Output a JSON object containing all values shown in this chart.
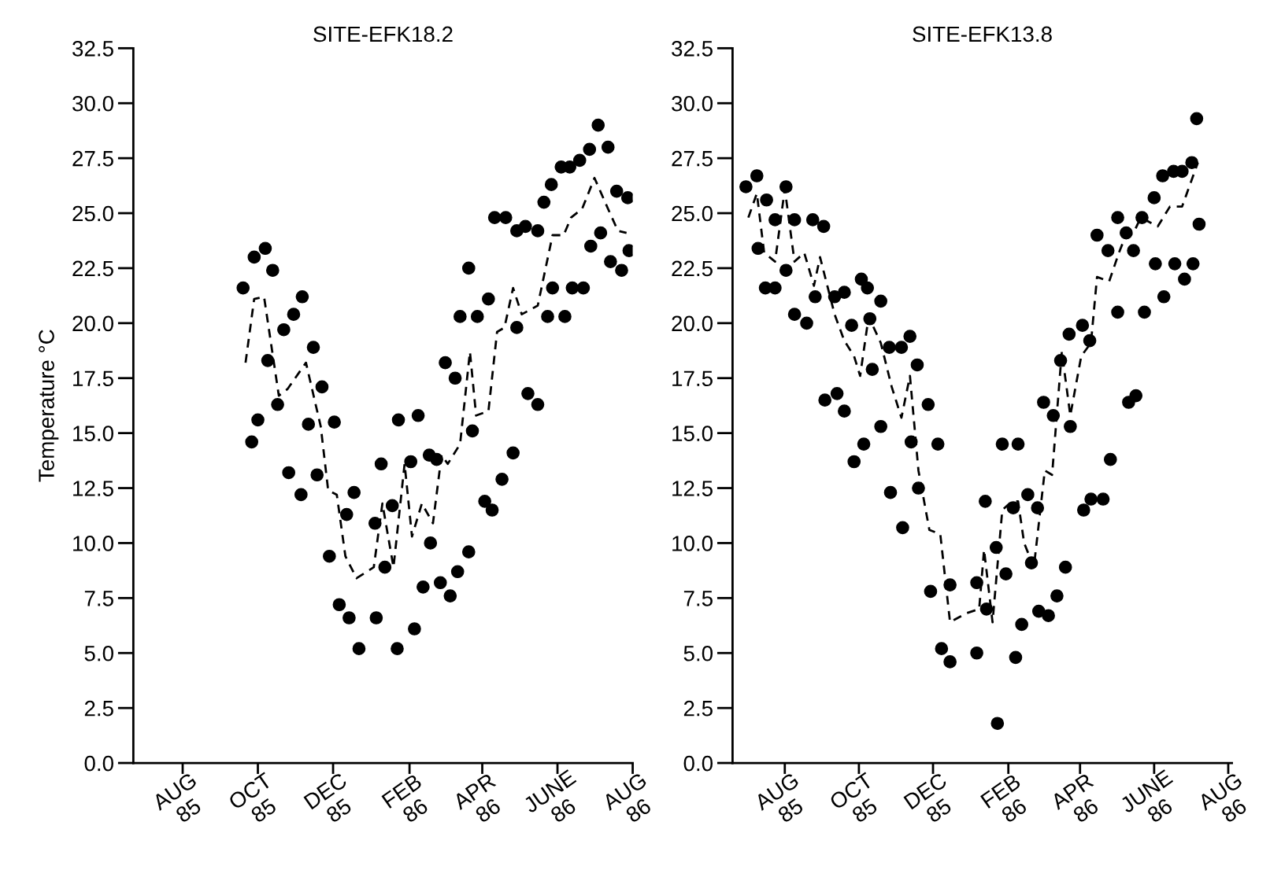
{
  "chart_data": [
    {
      "type": "scatter",
      "title": "SITE-EFK18.2",
      "ylabel": "Temperature °C",
      "xlim": [
        "1985-06-22",
        "1986-08-01"
      ],
      "ylim": [
        0,
        32.5
      ],
      "xticks": [
        {
          "value": "1985-08",
          "label": "AUG\n85"
        },
        {
          "value": "1985-10",
          "label": "OCT\n85"
        },
        {
          "value": "1985-12",
          "label": "DEC\n85"
        },
        {
          "value": "1986-02",
          "label": "FEB\n86"
        },
        {
          "value": "1986-04",
          "label": "APR\n86"
        },
        {
          "value": "1986-06",
          "label": "JUNE\n86"
        },
        {
          "value": "1986-08",
          "label": "AUG\n86"
        }
      ],
      "yticks": [
        {
          "value": 0,
          "label": "0.0"
        },
        {
          "value": 2.5,
          "label": "2.5"
        },
        {
          "value": 5,
          "label": "5.0"
        },
        {
          "value": 7.5,
          "label": "7.5"
        },
        {
          "value": 10,
          "label": "10.0"
        },
        {
          "value": 12.5,
          "label": "12.5"
        },
        {
          "value": 15,
          "label": "15.0"
        },
        {
          "value": 17.5,
          "label": "17.5"
        },
        {
          "value": 20,
          "label": "20.0"
        },
        {
          "value": 22.5,
          "label": "22.5"
        },
        {
          "value": 25,
          "label": "25.0"
        },
        {
          "value": 27.5,
          "label": "27.5"
        },
        {
          "value": 30,
          "label": "30.0"
        },
        {
          "value": 32.5,
          "label": "32.5"
        }
      ],
      "series": [
        {
          "color": "#000000",
          "marker": "circle",
          "x": [
            "1985-09-19",
            "1985-09-26",
            "1985-09-28",
            "1985-10-01",
            "1985-10-07",
            "1985-10-09",
            "1985-10-13",
            "1985-10-17",
            "1985-10-22",
            "1985-10-26",
            "1985-10-30",
            "1985-11-05",
            "1985-11-06",
            "1985-11-11",
            "1985-11-15",
            "1985-11-18",
            "1985-11-22",
            "1985-11-28",
            "1985-12-02",
            "1985-12-06",
            "1985-12-12",
            "1985-12-14",
            "1985-12-18",
            "1985-12-22",
            "1986-01-04",
            "1986-01-05",
            "1986-01-09",
            "1986-01-12",
            "1986-01-18",
            "1986-01-22",
            "1986-01-23",
            "1986-02-02",
            "1986-02-05",
            "1986-02-08",
            "1986-02-12",
            "1986-02-17",
            "1986-02-18",
            "1986-02-23",
            "1986-02-26",
            "1986-03-02",
            "1986-03-06",
            "1986-03-10",
            "1986-03-12",
            "1986-03-14",
            "1986-03-21",
            "1986-03-21",
            "1986-03-24",
            "1986-03-28",
            "1986-04-03",
            "1986-04-06",
            "1986-04-09",
            "1986-04-11",
            "1986-04-17",
            "1986-04-20",
            "1986-04-26",
            "1986-04-29",
            "1986-04-29",
            "1986-05-06",
            "1986-05-08",
            "1986-05-16",
            "1986-05-16",
            "1986-05-21",
            "1986-05-24",
            "1986-05-27",
            "1986-05-28",
            "1986-06-04",
            "1986-06-07",
            "1986-06-11",
            "1986-06-13",
            "1986-06-19",
            "1986-06-22",
            "1986-06-27",
            "1986-06-28",
            "1986-07-04",
            "1986-07-06",
            "1986-07-12",
            "1986-07-14",
            "1986-07-19",
            "1986-07-23",
            "1986-07-28",
            "1986-07-29"
          ],
          "values": [
            21.6,
            14.6,
            23.0,
            15.6,
            23.4,
            18.3,
            22.4,
            16.3,
            19.7,
            13.2,
            20.4,
            12.2,
            21.2,
            15.4,
            18.9,
            13.1,
            17.1,
            9.4,
            15.5,
            7.2,
            11.3,
            6.6,
            12.3,
            5.2,
            10.9,
            6.6,
            13.6,
            8.9,
            11.7,
            5.2,
            15.6,
            13.7,
            6.1,
            15.8,
            8.0,
            14.0,
            10.0,
            13.8,
            8.2,
            18.2,
            7.6,
            17.5,
            8.7,
            20.3,
            9.6,
            22.5,
            15.1,
            20.3,
            11.9,
            21.1,
            11.5,
            24.8,
            12.9,
            24.8,
            14.1,
            24.2,
            19.8,
            24.4,
            16.8,
            24.2,
            16.3,
            25.5,
            20.3,
            26.3,
            21.6,
            27.1,
            20.3,
            27.1,
            21.6,
            27.4,
            21.6,
            27.9,
            23.5,
            29.0,
            24.1,
            28.0,
            22.8,
            26.0,
            22.4,
            25.7,
            23.3
          ]
        },
        {
          "type": "line",
          "color": "#000000",
          "line_style": "dashed",
          "x": [
            "1985-09-21",
            "1985-09-28",
            "1985-10-06",
            "1985-10-18",
            "1985-10-25",
            "1985-11-09",
            "1985-11-21",
            "1985-11-27",
            "1985-12-04",
            "1985-12-11",
            "1985-12-20",
            "1986-01-03",
            "1986-01-10",
            "1986-01-19",
            "1986-01-28",
            "1986-02-03",
            "1986-02-11",
            "1986-02-20",
            "1986-02-27",
            "1986-03-04",
            "1986-03-14",
            "1986-03-22",
            "1986-03-27",
            "1986-04-06",
            "1986-04-13",
            "1986-04-19",
            "1986-04-26",
            "1986-05-03",
            "1986-05-16",
            "1986-05-28",
            "1986-06-06",
            "1986-06-12",
            "1986-06-21",
            "1986-07-01",
            "1986-07-12",
            "1986-07-20",
            "1986-07-27"
          ],
          "values": [
            18.2,
            21.1,
            21.2,
            16.7,
            17.0,
            18.2,
            15.3,
            12.4,
            12.2,
            9.4,
            8.4,
            8.9,
            11.8,
            8.9,
            13.6,
            10.3,
            11.8,
            10.9,
            14.0,
            13.6,
            14.5,
            18.7,
            15.8,
            16.0,
            19.6,
            19.8,
            21.6,
            20.4,
            20.8,
            24.0,
            24.0,
            24.8,
            25.2,
            26.6,
            25.2,
            24.2,
            24.1
          ]
        }
      ]
    },
    {
      "type": "scatter",
      "title": "SITE-EFK13.8",
      "xlim": [
        "1985-06-19",
        "1986-08-04"
      ],
      "ylim": [
        0,
        32.5
      ],
      "xticks": [
        {
          "value": "1985-08",
          "label": "AUG\n85"
        },
        {
          "value": "1985-10",
          "label": "OCT\n85"
        },
        {
          "value": "1985-12",
          "label": "DEC\n85"
        },
        {
          "value": "1986-02",
          "label": "FEB\n86"
        },
        {
          "value": "1986-04",
          "label": "APR\n86"
        },
        {
          "value": "1986-06",
          "label": "JUNE\n86"
        },
        {
          "value": "1986-08",
          "label": "AUG\n86"
        }
      ],
      "yticks": [
        {
          "value": 0,
          "label": "0.0"
        },
        {
          "value": 2.5,
          "label": "2.5"
        },
        {
          "value": 5,
          "label": "5.0"
        },
        {
          "value": 7.5,
          "label": "7.5"
        },
        {
          "value": 10,
          "label": "10.0"
        },
        {
          "value": 12.5,
          "label": "12.5"
        },
        {
          "value": 15,
          "label": "15.0"
        },
        {
          "value": 17.5,
          "label": "17.5"
        },
        {
          "value": 20,
          "label": "20.0"
        },
        {
          "value": 22.5,
          "label": "22.5"
        },
        {
          "value": 25,
          "label": "25.0"
        },
        {
          "value": 27.5,
          "label": "27.5"
        },
        {
          "value": 30,
          "label": "30.0"
        },
        {
          "value": 32.5,
          "label": "32.5"
        }
      ],
      "series": [
        {
          "color": "#000000",
          "marker": "circle",
          "x": [
            "1985-06-30",
            "1985-07-09",
            "1985-07-10",
            "1985-07-16",
            "1985-07-17",
            "1985-07-24",
            "1985-07-24",
            "1985-08-02",
            "1985-08-02",
            "1985-08-09",
            "1985-08-09",
            "1985-08-19",
            "1985-08-24",
            "1985-08-26",
            "1985-09-02",
            "1985-09-03",
            "1985-09-11",
            "1985-09-13",
            "1985-09-19",
            "1985-09-19",
            "1985-09-25",
            "1985-09-27",
            "1985-10-03",
            "1985-10-05",
            "1985-10-08",
            "1985-10-10",
            "1985-10-12",
            "1985-10-19",
            "1985-10-19",
            "1985-10-26",
            "1985-10-27",
            "1985-11-05",
            "1985-11-06",
            "1985-11-12",
            "1985-11-13",
            "1985-11-18",
            "1985-11-19",
            "1985-11-27",
            "1985-11-29",
            "1985-12-05",
            "1985-12-08",
            "1985-12-15",
            "1985-12-15",
            "1986-01-06",
            "1986-01-06",
            "1986-01-13",
            "1986-01-14",
            "1986-01-22",
            "1986-01-23",
            "1986-01-27",
            "1986-01-30",
            "1986-02-05",
            "1986-02-07",
            "1986-02-09",
            "1986-02-12",
            "1986-02-17",
            "1986-02-20",
            "1986-02-25",
            "1986-02-26",
            "1986-03-02",
            "1986-03-06",
            "1986-03-10",
            "1986-03-13",
            "1986-03-16",
            "1986-03-20",
            "1986-03-23",
            "1986-03-24",
            "1986-04-03",
            "1986-04-04",
            "1986-04-09",
            "1986-04-10",
            "1986-04-15",
            "1986-04-20",
            "1986-04-24",
            "1986-04-26",
            "1986-05-02",
            "1986-05-02",
            "1986-05-09",
            "1986-05-11",
            "1986-05-15",
            "1986-05-17",
            "1986-05-22",
            "1986-05-24",
            "1986-06-01",
            "1986-06-02",
            "1986-06-08",
            "1986-06-09",
            "1986-06-17",
            "1986-06-18",
            "1986-06-24",
            "1986-06-26",
            "1986-07-02",
            "1986-07-03",
            "1986-07-06",
            "1986-07-08"
          ],
          "values": [
            26.2,
            26.7,
            23.4,
            21.6,
            25.6,
            24.7,
            21.6,
            26.2,
            22.4,
            24.7,
            20.4,
            20.0,
            24.7,
            21.2,
            24.4,
            16.5,
            21.2,
            16.8,
            21.4,
            16.0,
            19.9,
            13.7,
            22.0,
            14.5,
            21.6,
            20.2,
            17.9,
            21.0,
            15.3,
            18.9,
            12.3,
            18.9,
            10.7,
            19.4,
            14.6,
            18.1,
            12.5,
            16.3,
            7.8,
            14.5,
            5.2,
            8.1,
            4.6,
            8.2,
            5.0,
            11.9,
            7.0,
            9.8,
            1.8,
            14.5,
            8.6,
            11.6,
            4.8,
            14.5,
            6.3,
            12.2,
            9.1,
            11.6,
            6.9,
            16.4,
            6.7,
            15.8,
            7.6,
            18.3,
            8.9,
            19.5,
            15.3,
            19.9,
            11.5,
            19.2,
            12.0,
            24.0,
            12.0,
            23.3,
            13.8,
            24.8,
            20.5,
            24.1,
            16.4,
            23.3,
            16.7,
            24.8,
            20.5,
            25.7,
            22.7,
            26.7,
            21.2,
            26.9,
            22.7,
            26.9,
            22.0,
            27.3,
            22.7,
            29.3,
            24.5
          ]
        },
        {
          "type": "line",
          "color": "#000000",
          "line_style": "dashed",
          "x": [
            "1985-07-02",
            "1985-07-09",
            "1985-07-15",
            "1985-07-24",
            "1985-08-01",
            "1985-08-09",
            "1985-08-17",
            "1985-08-25",
            "1985-08-30",
            "1985-09-11",
            "1985-09-19",
            "1985-09-27",
            "1985-10-02",
            "1985-10-09",
            "1985-10-19",
            "1985-10-28",
            "1985-11-05",
            "1985-11-12",
            "1985-11-19",
            "1985-11-28",
            "1985-12-07",
            "1985-12-15",
            "1985-12-28",
            "1986-01-08",
            "1986-01-12",
            "1986-01-19",
            "1986-01-27",
            "1986-02-04",
            "1986-02-09",
            "1986-02-14",
            "1986-02-22",
            "1986-03-03",
            "1986-03-09",
            "1986-03-17",
            "1986-03-24",
            "1986-04-02",
            "1986-04-10",
            "1986-04-15",
            "1986-04-25",
            "1986-05-03",
            "1986-05-08",
            "1986-05-15",
            "1986-05-21",
            "1986-06-04",
            "1986-06-14",
            "1986-06-24",
            "1986-07-07"
          ],
          "values": [
            24.8,
            25.9,
            23.2,
            22.8,
            26.1,
            22.8,
            23.2,
            21.7,
            23.0,
            20.4,
            19.2,
            18.5,
            17.6,
            20.3,
            19.1,
            17.1,
            15.7,
            17.6,
            13.3,
            10.6,
            10.4,
            6.4,
            6.8,
            7.0,
            9.7,
            6.4,
            11.5,
            11.9,
            11.9,
            10.0,
            8.9,
            13.3,
            13.1,
            18.7,
            15.8,
            18.5,
            19.1,
            22.1,
            21.9,
            23.2,
            23.9,
            24.1,
            24.8,
            24.4,
            25.3,
            25.3,
            27.3
          ]
        }
      ]
    }
  ]
}
